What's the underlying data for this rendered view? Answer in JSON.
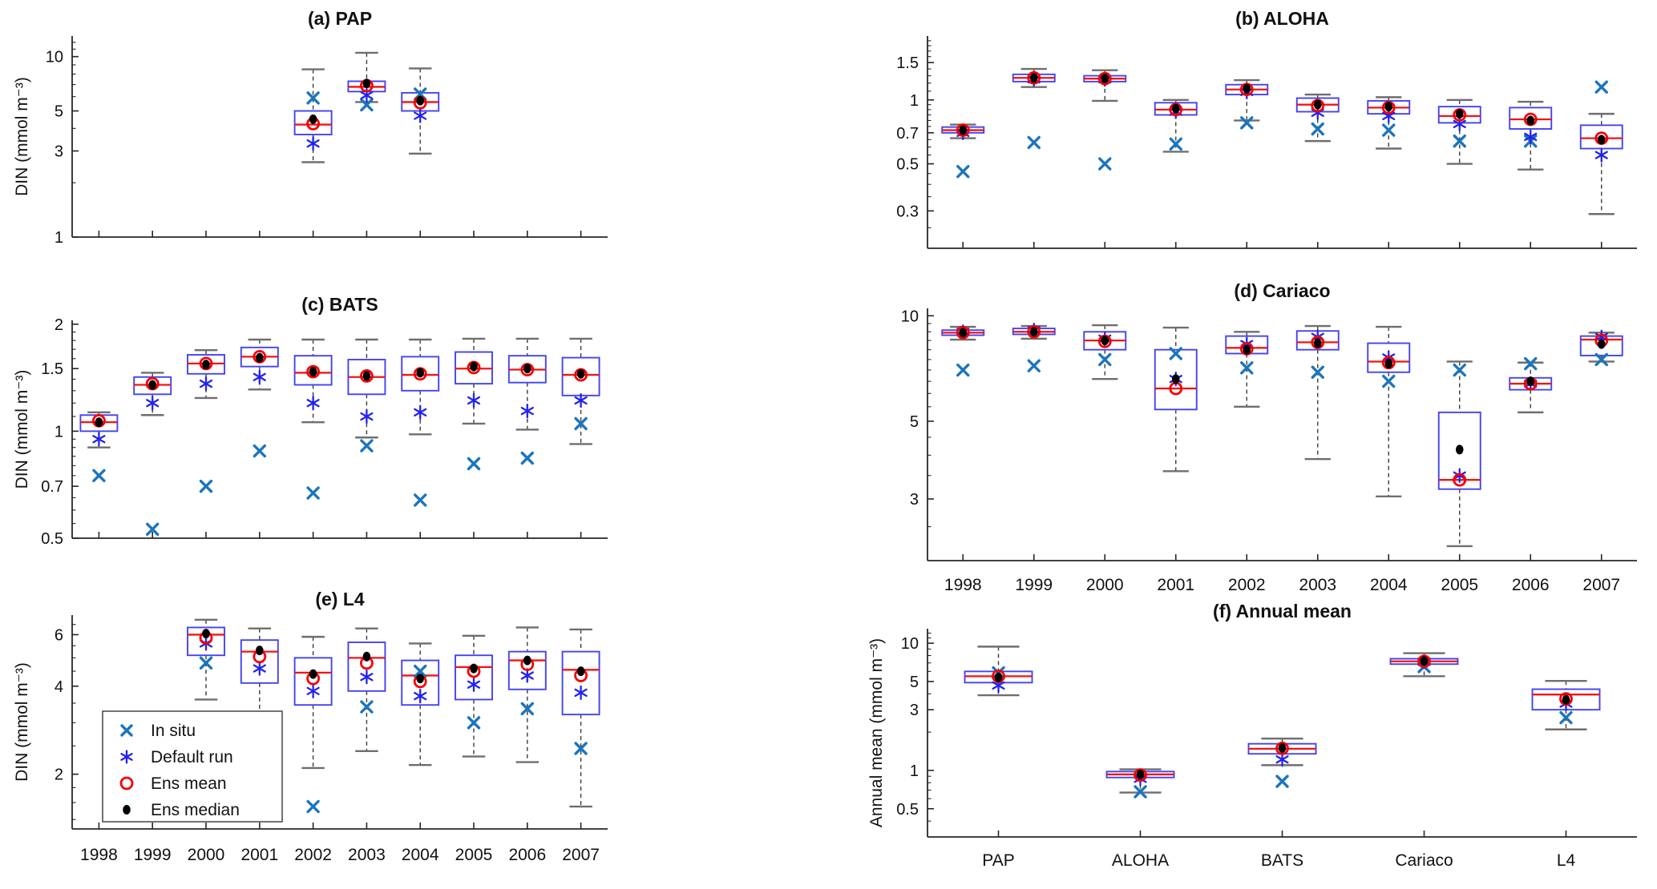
{
  "figure": {
    "background": "#ffffff",
    "marker_legend": {
      "items": [
        {
          "marker": "x-marker",
          "label": "In situ"
        },
        {
          "marker": "asterisk-marker",
          "label": "Default run"
        },
        {
          "marker": "open-circle-marker",
          "label": "Ens mean"
        },
        {
          "marker": "filled-dot-marker",
          "label": "Ens median"
        }
      ]
    }
  },
  "colors": {
    "box_edge": "#4343f0",
    "median_line": "#f01515",
    "whisker": "#3a3a3a",
    "whisker_cap": "#6e6e6e",
    "in_situ": "#1b75bc",
    "default_run": "#2222ee",
    "ens_mean": "#f50000",
    "ens_median": "#000000",
    "axis": "#262626"
  },
  "chart_data": [
    {
      "id": "a",
      "type": "boxplot",
      "title": "(a) PAP",
      "ylabel": "DIN (mmol m⁻³)",
      "yscale": "log",
      "ylim": [
        1,
        13
      ],
      "yticks": [
        10,
        5,
        3,
        1
      ],
      "ytick_labels": [
        "10",
        "5",
        "3",
        "1"
      ],
      "categories": [
        "1998",
        "1999",
        "2000",
        "2001",
        "2002",
        "2003",
        "2004",
        "2005",
        "2006",
        "2007"
      ],
      "show_x_labels": false,
      "boxes": [
        null,
        null,
        null,
        null,
        {
          "whisker_low": 2.6,
          "q1": 3.7,
          "median": 4.2,
          "q3": 5.0,
          "whisker_high": 8.5,
          "ens_mean": 4.25,
          "ens_median": 4.5,
          "default_run": 3.3,
          "in_situ": 5.9
        },
        {
          "whisker_low": 5.6,
          "q1": 6.4,
          "median": 6.8,
          "q3": 7.3,
          "whisker_high": 10.5,
          "ens_mean": 6.9,
          "ens_median": 7.1,
          "default_run": 6.1,
          "in_situ": 5.4
        },
        {
          "whisker_low": 2.9,
          "q1": 5.0,
          "median": 5.6,
          "q3": 6.3,
          "whisker_high": 8.6,
          "ens_mean": 5.55,
          "ens_median": 5.7,
          "default_run": 4.7,
          "in_situ": 6.2
        },
        null,
        null,
        null
      ]
    },
    {
      "id": "b",
      "type": "boxplot",
      "title": "(b) ALOHA",
      "ylabel": "",
      "yscale": "log",
      "ylim": [
        0.2,
        2.0
      ],
      "yticks": [
        1.5,
        1,
        0.7,
        0.5,
        0.3
      ],
      "ytick_labels": [
        "1.5",
        "1",
        "0.7",
        "0.5",
        "0.3"
      ],
      "categories": [
        "1998",
        "1999",
        "2000",
        "2001",
        "2002",
        "2003",
        "2004",
        "2005",
        "2006",
        "2007"
      ],
      "show_x_labels": false,
      "boxes": [
        {
          "whisker_low": 0.66,
          "q1": 0.7,
          "median": 0.72,
          "q3": 0.745,
          "whisker_high": 0.765,
          "ens_mean": 0.72,
          "ens_median": 0.72,
          "default_run": 0.7,
          "in_situ": 0.46
        },
        {
          "whisker_low": 1.15,
          "q1": 1.22,
          "median": 1.27,
          "q3": 1.32,
          "whisker_high": 1.4,
          "ens_mean": 1.27,
          "ens_median": 1.27,
          "default_run": 1.25,
          "in_situ": 0.63
        },
        {
          "whisker_low": 0.99,
          "q1": 1.22,
          "median": 1.26,
          "q3": 1.3,
          "whisker_high": 1.38,
          "ens_mean": 1.26,
          "ens_median": 1.26,
          "default_run": 1.25,
          "in_situ": 0.5
        },
        {
          "whisker_low": 0.57,
          "q1": 0.85,
          "median": 0.9,
          "q3": 0.97,
          "whisker_high": 1.0,
          "ens_mean": 0.9,
          "ens_median": 0.91,
          "default_run": 0.88,
          "in_situ": 0.62
        },
        {
          "whisker_low": 0.8,
          "q1": 1.06,
          "median": 1.12,
          "q3": 1.18,
          "whisker_high": 1.24,
          "ens_mean": 1.12,
          "ens_median": 1.13,
          "default_run": 1.09,
          "in_situ": 0.78
        },
        {
          "whisker_low": 0.64,
          "q1": 0.88,
          "median": 0.95,
          "q3": 1.02,
          "whisker_high": 1.06,
          "ens_mean": 0.94,
          "ens_median": 0.95,
          "default_run": 0.87,
          "in_situ": 0.73
        },
        {
          "whisker_low": 0.59,
          "q1": 0.86,
          "median": 0.92,
          "q3": 0.99,
          "whisker_high": 1.03,
          "ens_mean": 0.92,
          "ens_median": 0.93,
          "default_run": 0.84,
          "in_situ": 0.72
        },
        {
          "whisker_low": 0.5,
          "q1": 0.78,
          "median": 0.84,
          "q3": 0.93,
          "whisker_high": 1.0,
          "ens_mean": 0.85,
          "ens_median": 0.86,
          "default_run": 0.77,
          "in_situ": 0.64
        },
        {
          "whisker_low": 0.47,
          "q1": 0.73,
          "median": 0.81,
          "q3": 0.92,
          "whisker_high": 0.98,
          "ens_mean": 0.81,
          "ens_median": 0.8,
          "default_run": 0.67,
          "in_situ": 0.64
        },
        {
          "whisker_low": 0.29,
          "q1": 0.59,
          "median": 0.66,
          "q3": 0.76,
          "whisker_high": 0.86,
          "ens_mean": 0.66,
          "ens_median": 0.65,
          "default_run": 0.55,
          "in_situ": 1.15
        }
      ]
    },
    {
      "id": "c",
      "type": "boxplot",
      "title": "(c) BATS",
      "ylabel": "DIN (mmol m⁻³)",
      "yscale": "log",
      "ylim": [
        0.5,
        2.05
      ],
      "yticks": [
        2,
        1.5,
        1,
        0.7,
        0.5
      ],
      "ytick_labels": [
        "2",
        "1.5",
        "1",
        "0.7",
        "0.5"
      ],
      "categories": [
        "1998",
        "1999",
        "2000",
        "2001",
        "2002",
        "2003",
        "2004",
        "2005",
        "2006",
        "2007"
      ],
      "show_x_labels": false,
      "boxes": [
        {
          "whisker_low": 0.9,
          "q1": 1.0,
          "median": 1.06,
          "q3": 1.11,
          "whisker_high": 1.13,
          "ens_mean": 1.07,
          "ens_median": 1.06,
          "default_run": 0.95,
          "in_situ": 0.75
        },
        {
          "whisker_low": 1.11,
          "q1": 1.27,
          "median": 1.35,
          "q3": 1.42,
          "whisker_high": 1.46,
          "ens_mean": 1.36,
          "ens_median": 1.35,
          "default_run": 1.2,
          "in_situ": 0.53
        },
        {
          "whisker_low": 1.24,
          "q1": 1.45,
          "median": 1.55,
          "q3": 1.64,
          "whisker_high": 1.69,
          "ens_mean": 1.55,
          "ens_median": 1.54,
          "default_run": 1.36,
          "in_situ": 0.7
        },
        {
          "whisker_low": 1.31,
          "q1": 1.52,
          "median": 1.62,
          "q3": 1.72,
          "whisker_high": 1.81,
          "ens_mean": 1.62,
          "ens_median": 1.61,
          "default_run": 1.42,
          "in_situ": 0.88
        },
        {
          "whisker_low": 1.06,
          "q1": 1.35,
          "median": 1.46,
          "q3": 1.63,
          "whisker_high": 1.81,
          "ens_mean": 1.47,
          "ens_median": 1.47,
          "default_run": 1.2,
          "in_situ": 0.67
        },
        {
          "whisker_low": 0.96,
          "q1": 1.27,
          "median": 1.42,
          "q3": 1.59,
          "whisker_high": 1.81,
          "ens_mean": 1.43,
          "ens_median": 1.43,
          "default_run": 1.1,
          "in_situ": 0.91
        },
        {
          "whisker_low": 0.98,
          "q1": 1.3,
          "median": 1.44,
          "q3": 1.62,
          "whisker_high": 1.81,
          "ens_mean": 1.45,
          "ens_median": 1.46,
          "default_run": 1.13,
          "in_situ": 0.64
        },
        {
          "whisker_low": 1.05,
          "q1": 1.36,
          "median": 1.5,
          "q3": 1.67,
          "whisker_high": 1.82,
          "ens_mean": 1.51,
          "ens_median": 1.52,
          "default_run": 1.22,
          "in_situ": 0.81
        },
        {
          "whisker_low": 1.01,
          "q1": 1.37,
          "median": 1.49,
          "q3": 1.63,
          "whisker_high": 1.82,
          "ens_mean": 1.49,
          "ens_median": 1.5,
          "default_run": 1.14,
          "in_situ": 0.84
        },
        {
          "whisker_low": 0.92,
          "q1": 1.26,
          "median": 1.44,
          "q3": 1.61,
          "whisker_high": 1.82,
          "ens_mean": 1.44,
          "ens_median": 1.45,
          "default_run": 1.22,
          "in_situ": 1.05
        }
      ]
    },
    {
      "id": "d",
      "type": "boxplot",
      "title": "(d) Cariaco",
      "ylabel": "",
      "yscale": "log",
      "ylim": [
        2,
        10.5
      ],
      "yticks": [
        10,
        5,
        3
      ],
      "ytick_labels": [
        "10",
        "5",
        "3"
      ],
      "categories": [
        "1998",
        "1999",
        "2000",
        "2001",
        "2002",
        "2003",
        "2004",
        "2005",
        "2006",
        "2007"
      ],
      "show_x_labels": true,
      "boxes": [
        {
          "whisker_low": 8.55,
          "q1": 8.8,
          "median": 8.95,
          "q3": 9.1,
          "whisker_high": 9.3,
          "ens_mean": 8.95,
          "ens_median": 8.95,
          "default_run": 9.0,
          "in_situ": 7.0
        },
        {
          "whisker_low": 8.6,
          "q1": 8.85,
          "median": 9.0,
          "q3": 9.2,
          "whisker_high": 9.35,
          "ens_mean": 9.0,
          "ens_median": 9.0,
          "default_run": 9.1,
          "in_situ": 7.2
        },
        {
          "whisker_low": 6.6,
          "q1": 8.0,
          "median": 8.5,
          "q3": 9.0,
          "whisker_high": 9.4,
          "ens_mean": 8.45,
          "ens_median": 8.5,
          "default_run": 8.6,
          "in_situ": 7.5
        },
        {
          "whisker_low": 3.6,
          "q1": 5.4,
          "median": 6.2,
          "q3": 8.0,
          "whisker_high": 9.25,
          "ens_mean": 6.2,
          "ens_median": 6.6,
          "default_run": 6.6,
          "in_situ": 7.8
        },
        {
          "whisker_low": 5.5,
          "q1": 7.8,
          "median": 8.1,
          "q3": 8.75,
          "whisker_high": 9.0,
          "ens_mean": 8.05,
          "ens_median": 8.0,
          "default_run": 8.3,
          "in_situ": 7.1
        },
        {
          "whisker_low": 3.9,
          "q1": 8.0,
          "median": 8.4,
          "q3": 9.05,
          "whisker_high": 9.35,
          "ens_mean": 8.4,
          "ens_median": 8.35,
          "default_run": 8.7,
          "in_situ": 6.9
        },
        {
          "whisker_low": 3.05,
          "q1": 6.9,
          "median": 7.4,
          "q3": 8.35,
          "whisker_high": 9.3,
          "ens_mean": 7.35,
          "ens_median": 7.3,
          "default_run": 7.6,
          "in_situ": 6.5
        },
        {
          "whisker_low": 2.2,
          "q1": 3.2,
          "median": 3.4,
          "q3": 5.3,
          "whisker_high": 7.4,
          "ens_mean": 3.4,
          "ens_median": 4.15,
          "default_run": 3.5,
          "in_situ": 7.0
        },
        {
          "whisker_low": 5.3,
          "q1": 6.15,
          "median": 6.4,
          "q3": 6.65,
          "whisker_high": 7.35,
          "ens_mean": 6.4,
          "ens_median": 6.5,
          "default_run": 6.4,
          "in_situ": 7.3
        },
        {
          "whisker_low": 7.4,
          "q1": 7.7,
          "median": 8.55,
          "q3": 8.75,
          "whisker_high": 8.95,
          "ens_mean": 8.5,
          "ens_median": 8.3,
          "default_run": 8.7,
          "in_situ": 7.5
        }
      ]
    },
    {
      "id": "e",
      "type": "boxplot",
      "title": "(e) L4",
      "ylabel": "DIN (mmol m⁻³)",
      "yscale": "log",
      "ylim": [
        1.3,
        7
      ],
      "yticks": [
        6,
        4,
        2
      ],
      "ytick_labels": [
        "6",
        "4",
        "2"
      ],
      "categories": [
        "1998",
        "1999",
        "2000",
        "2001",
        "2002",
        "2003",
        "2004",
        "2005",
        "2006",
        "2007"
      ],
      "show_x_labels": true,
      "boxes": [
        null,
        null,
        {
          "whisker_low": 3.6,
          "q1": 5.1,
          "median": 6.0,
          "q3": 6.35,
          "whisker_high": 6.75,
          "ens_mean": 5.85,
          "ens_median": 6.05,
          "default_run": 5.6,
          "in_situ": 4.8
        },
        {
          "whisker_low": 2.4,
          "q1": 4.1,
          "median": 5.25,
          "q3": 5.75,
          "whisker_high": 6.3,
          "ens_mean": 5.05,
          "ens_median": 5.3,
          "default_run": 4.6,
          "in_situ": 1.75
        },
        {
          "whisker_low": 2.1,
          "q1": 3.45,
          "median": 4.45,
          "q3": 5.0,
          "whisker_high": 5.9,
          "ens_mean": 4.25,
          "ens_median": 4.4,
          "default_run": 3.85,
          "in_situ": 1.55
        },
        {
          "whisker_low": 2.4,
          "q1": 3.85,
          "median": 5.0,
          "q3": 5.65,
          "whisker_high": 6.3,
          "ens_mean": 4.8,
          "ens_median": 5.05,
          "default_run": 4.3,
          "in_situ": 3.4
        },
        {
          "whisker_low": 2.15,
          "q1": 3.45,
          "median": 4.35,
          "q3": 4.9,
          "whisker_high": 5.6,
          "ens_mean": 4.15,
          "ens_median": 4.25,
          "default_run": 3.7,
          "in_situ": 4.5
        },
        {
          "whisker_low": 2.3,
          "q1": 3.6,
          "median": 4.65,
          "q3": 5.1,
          "whisker_high": 5.95,
          "ens_mean": 4.5,
          "ens_median": 4.6,
          "default_run": 4.05,
          "in_situ": 3.0
        },
        {
          "whisker_low": 2.2,
          "q1": 3.9,
          "median": 4.9,
          "q3": 5.25,
          "whisker_high": 6.35,
          "ens_mean": 4.75,
          "ens_median": 4.9,
          "default_run": 4.35,
          "in_situ": 3.35
        },
        {
          "whisker_low": 1.55,
          "q1": 3.2,
          "median": 4.55,
          "q3": 5.25,
          "whisker_high": 6.25,
          "ens_mean": 4.35,
          "ens_median": 4.5,
          "default_run": 3.8,
          "in_situ": 2.45
        }
      ]
    },
    {
      "id": "f",
      "type": "boxplot",
      "title": "(f) Annual mean",
      "ylabel": "Annual mean (mmol m⁻³)",
      "yscale": "log",
      "ylim": [
        0.3,
        13
      ],
      "yticks": [
        10,
        5,
        3,
        1,
        0.5
      ],
      "ytick_labels": [
        "10",
        "5",
        "3",
        "1",
        "0.5"
      ],
      "categories": [
        "PAP",
        "ALOHA",
        "BATS",
        "Cariaco",
        "L4"
      ],
      "show_x_labels": true,
      "boxes": [
        {
          "whisker_low": 3.9,
          "q1": 4.9,
          "median": 5.5,
          "q3": 6.0,
          "whisker_high": 9.4,
          "ens_mean": 5.5,
          "ens_median": 5.4,
          "default_run": 4.65,
          "in_situ": 5.85
        },
        {
          "whisker_low": 0.67,
          "q1": 0.88,
          "median": 0.93,
          "q3": 0.98,
          "whisker_high": 1.02,
          "ens_mean": 0.92,
          "ens_median": 0.93,
          "default_run": 0.86,
          "in_situ": 0.68
        },
        {
          "whisker_low": 1.1,
          "q1": 1.35,
          "median": 1.48,
          "q3": 1.62,
          "whisker_high": 1.78,
          "ens_mean": 1.49,
          "ens_median": 1.5,
          "default_run": 1.22,
          "in_situ": 0.82
        },
        {
          "whisker_low": 5.5,
          "q1": 6.85,
          "median": 7.2,
          "q3": 7.55,
          "whisker_high": 8.35,
          "ens_mean": 7.2,
          "ens_median": 7.25,
          "default_run": 7.15,
          "in_situ": 6.55
        },
        {
          "whisker_low": 2.1,
          "q1": 3.0,
          "median": 3.95,
          "q3": 4.35,
          "whisker_high": 5.05,
          "ens_mean": 3.65,
          "ens_median": 3.6,
          "default_run": 3.35,
          "in_situ": 2.6
        }
      ]
    }
  ]
}
